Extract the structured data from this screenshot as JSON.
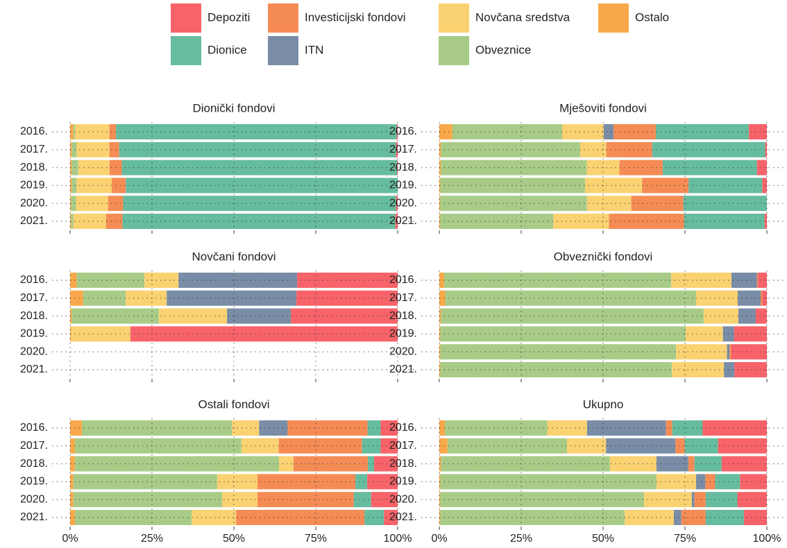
{
  "chart_data": [
    {
      "type": "bar",
      "title": "Dionički fondovi",
      "categories": [
        "2016.",
        "2017.",
        "2018.",
        "2019.",
        "2020.",
        "2021."
      ],
      "xlim": [
        0,
        100
      ],
      "xticks": [
        0,
        25,
        50,
        75,
        100
      ],
      "series": [
        {
          "name": "Depoziti",
          "color": "#F8636A",
          "values": [
            0.3,
            0.5,
            0.2,
            0,
            0.5,
            0.7
          ]
        },
        {
          "name": "Dionice",
          "color": "#66BC9E",
          "values": [
            85.7,
            84.5,
            84,
            83,
            83.3,
            83.3
          ]
        },
        {
          "name": "Investicijski fondovi",
          "color": "#F58C55",
          "values": [
            2,
            3,
            3.8,
            4.3,
            4.6,
            5
          ]
        },
        {
          "name": "ITN",
          "color": "#7A8DA6",
          "values": [
            0,
            0,
            0,
            0,
            0,
            0
          ]
        },
        {
          "name": "Novčana sredstva",
          "color": "#FAD272",
          "values": [
            10.5,
            10,
            9.5,
            10.7,
            9.8,
            10
          ]
        },
        {
          "name": "Obveznice",
          "color": "#A8CC88",
          "values": [
            0.5,
            1.5,
            2,
            1.5,
            1.5,
            0.7
          ]
        },
        {
          "name": "Ostalo",
          "color": "#F9A94B",
          "values": [
            1,
            0.5,
            0.5,
            0.5,
            0.3,
            0.3
          ]
        }
      ]
    },
    {
      "type": "bar",
      "title": "Mješoviti fondovi",
      "categories": [
        "2016.",
        "2017.",
        "2018.",
        "2019.",
        "2020.",
        "2021."
      ],
      "xlim": [
        0,
        100
      ],
      "xticks": [
        0,
        25,
        50,
        75,
        100
      ],
      "series": [
        {
          "values": [
            5.5,
            0.5,
            3,
            1.4,
            0,
            0.7
          ]
        },
        {
          "values": [
            28.4,
            34.5,
            28.8,
            22.5,
            25.5,
            24.6
          ]
        },
        {
          "values": [
            12.9,
            14,
            13.2,
            14.2,
            15.9,
            22.9
          ]
        },
        {
          "values": [
            3,
            0,
            0,
            0,
            0,
            0
          ]
        },
        {
          "values": [
            12.7,
            8,
            10,
            17.4,
            13.5,
            17
          ]
        },
        {
          "values": [
            33.5,
            42.5,
            44.5,
            44.2,
            44.8,
            34.5
          ]
        },
        {
          "values": [
            4,
            0.5,
            0.5,
            0.3,
            0.3,
            0.3
          ]
        }
      ]
    },
    {
      "type": "bar",
      "title": "Novčani fondovi",
      "categories": [
        "2016.",
        "2017.",
        "2018.",
        "2019.",
        "2020.",
        "2021."
      ],
      "xlim": [
        0,
        100
      ],
      "xticks": [
        0,
        25,
        50,
        75,
        100
      ],
      "series": [
        {
          "values": [
            30.7,
            30.9,
            32.6,
            81.6,
            0,
            0
          ]
        },
        {
          "values": [
            0,
            0,
            0,
            0,
            0,
            0
          ]
        },
        {
          "values": [
            0,
            0,
            0,
            0,
            0,
            0
          ]
        },
        {
          "values": [
            36.2,
            39.6,
            19.5,
            0,
            0,
            0
          ]
        },
        {
          "values": [
            10.4,
            12.5,
            20.8,
            18.1,
            0,
            0
          ]
        },
        {
          "values": [
            20.7,
            13,
            26.6,
            0,
            0,
            0
          ]
        },
        {
          "values": [
            2,
            4,
            0.5,
            0.3,
            0,
            0
          ]
        }
      ]
    },
    {
      "type": "bar",
      "title": "Obveznički fondovi",
      "categories": [
        "2016.",
        "2017.",
        "2018.",
        "2019.",
        "2020.",
        "2021."
      ],
      "xlim": [
        0,
        100
      ],
      "xticks": [
        0,
        25,
        50,
        75,
        100
      ],
      "series": [
        {
          "values": [
            2.7,
            1.4,
            3.4,
            10,
            10.9,
            9.9
          ]
        },
        {
          "values": [
            0,
            0,
            0,
            0,
            0,
            0
          ]
        },
        {
          "values": [
            0.3,
            0.5,
            0,
            0,
            0.5,
            0
          ]
        },
        {
          "values": [
            7.8,
            7,
            5.3,
            3.4,
            0.8,
            3.2
          ]
        },
        {
          "values": [
            18.4,
            12.7,
            10.6,
            11.4,
            15.5,
            15.9
          ]
        },
        {
          "values": [
            69.3,
            76.6,
            80.2,
            74.9,
            72,
            70.7
          ]
        },
        {
          "values": [
            1.5,
            1.8,
            0.5,
            0.3,
            0.3,
            0.3
          ]
        }
      ]
    },
    {
      "type": "bar",
      "title": "Ostali fondovi",
      "categories": [
        "2016.",
        "2017.",
        "2018.",
        "2019.",
        "2020.",
        "2021."
      ],
      "xlim": [
        0,
        100
      ],
      "xticks": [
        {
          "value": 0,
          "label": "0%"
        },
        {
          "value": 25,
          "label": "25%"
        },
        {
          "value": 50,
          "label": "50%"
        },
        {
          "value": 75,
          "label": "75%"
        },
        {
          "value": 100,
          "label": "100%"
        }
      ],
      "series": [
        {
          "values": [
            5.2,
            5.2,
            7.2,
            9.3,
            8.1,
            4.2
          ]
        },
        {
          "values": [
            4,
            5.7,
            1.9,
            3.6,
            5.3,
            5.9
          ]
        },
        {
          "values": [
            24.4,
            25.4,
            22.7,
            29.9,
            29.4,
            39.2
          ]
        },
        {
          "values": [
            8.7,
            0,
            0,
            0,
            0,
            0
          ]
        },
        {
          "values": [
            8.3,
            11.4,
            4.4,
            12.3,
            10.8,
            13.6
          ]
        },
        {
          "values": [
            45.8,
            50.8,
            62.3,
            43.9,
            45.4,
            35.6
          ]
        },
        {
          "values": [
            3.6,
            1.5,
            1.5,
            1,
            1,
            1.5
          ]
        }
      ]
    },
    {
      "type": "bar",
      "title": "Ukupno",
      "categories": [
        "2016.",
        "2017.",
        "2018.",
        "2019.",
        "2020.",
        "2021."
      ],
      "xlim": [
        0,
        100
      ],
      "xticks": [
        {
          "value": 0,
          "label": "0%"
        },
        {
          "value": 25,
          "label": "25%"
        },
        {
          "value": 50,
          "label": "50%"
        },
        {
          "value": 75,
          "label": "75%"
        },
        {
          "value": 100,
          "label": "100%"
        }
      ],
      "series": [
        {
          "values": [
            19.6,
            14.9,
            13.8,
            8.2,
            9,
            7
          ]
        },
        {
          "values": [
            9.3,
            10.2,
            8.3,
            7.6,
            9.7,
            11.7
          ]
        },
        {
          "values": [
            1.9,
            2.8,
            1.9,
            3,
            3.4,
            7.4
          ]
        },
        {
          "values": [
            24.1,
            21.2,
            9.7,
            2.8,
            0.8,
            2.3
          ]
        },
        {
          "values": [
            12.1,
            11.9,
            14.2,
            12.1,
            14.6,
            15
          ]
        },
        {
          "values": [
            31.3,
            36.5,
            51.6,
            66,
            62.2,
            56.3
          ]
        },
        {
          "values": [
            1.7,
            2.5,
            0.5,
            0.3,
            0.3,
            0.3
          ]
        }
      ]
    }
  ]
}
